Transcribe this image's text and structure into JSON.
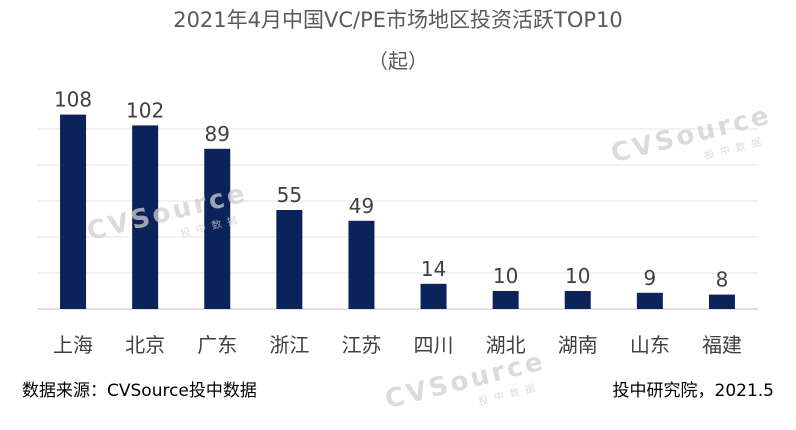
{
  "title": "2021年4月中国VC/PE市场地区投资活跃TOP10",
  "subtitle": "（起）",
  "source": "数据来源：CVSource投中数据",
  "credit": "投中研究院，2021.5",
  "watermark": {
    "main": "CVSource",
    "sub": "投中数据"
  },
  "colors": {
    "bar": "#0c2359",
    "grid": "#e6e6e6",
    "axis": "#bfbfbf",
    "label": "#404040"
  },
  "chart_data": {
    "type": "bar",
    "categories": [
      "上海",
      "北京",
      "广东",
      "浙江",
      "江苏",
      "四川",
      "湖北",
      "湖南",
      "山东",
      "福建"
    ],
    "values": [
      108,
      102,
      89,
      55,
      49,
      14,
      10,
      10,
      9,
      8
    ],
    "title": "2021年4月中国VC/PE市场地区投资活跃TOP10",
    "subtitle": "（起）",
    "ylim": [
      0,
      120
    ],
    "grid": true,
    "data_labels": true
  }
}
